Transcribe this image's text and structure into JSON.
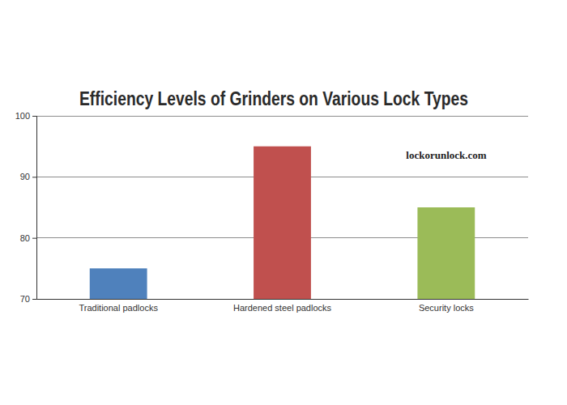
{
  "chart_data": {
    "type": "bar",
    "title": "Efficiency Levels of Grinders on Various Lock Types",
    "categories": [
      "Traditional padlocks",
      "Hardened steel padlocks",
      "Security locks"
    ],
    "values": [
      75,
      95,
      85
    ],
    "colors": [
      "#4f81bc",
      "#c0504e",
      "#9bbb58"
    ],
    "ylim": [
      70,
      100
    ],
    "yticks": [
      70,
      80,
      90,
      100
    ],
    "grid": true,
    "annotations": [
      "lockorunlock.com"
    ]
  }
}
